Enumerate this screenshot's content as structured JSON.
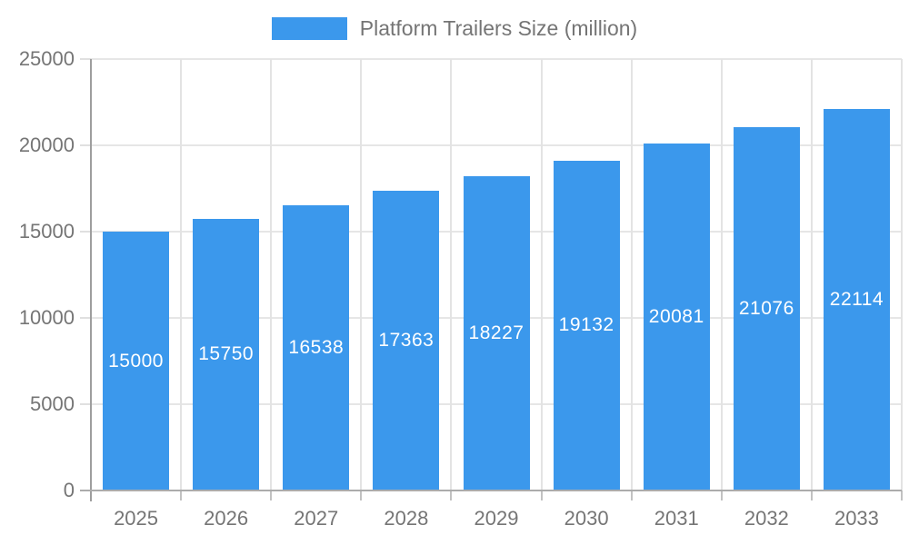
{
  "legend": {
    "label": "Platform Trailers Size (million)"
  },
  "colors": {
    "bar": "#3b98ec",
    "bar_label_text": "#ffffff",
    "axis_text": "#757575",
    "gridline": "#e6e6e6",
    "axis_line": "#9e9e9e"
  },
  "chart_data": {
    "type": "bar",
    "title": "Platform Trailers Size (million)",
    "series": [
      {
        "name": "Platform Trailers Size (million)",
        "values": [
          15000,
          15750,
          16538,
          17363,
          18227,
          19132,
          20081,
          21076,
          22114
        ]
      }
    ],
    "categories": [
      "2025",
      "2026",
      "2027",
      "2028",
      "2029",
      "2030",
      "2031",
      "2032",
      "2033"
    ],
    "data_labels": [
      "15000",
      "15750",
      "16538",
      "17363",
      "18227",
      "19132",
      "20081",
      "21076",
      "22114"
    ],
    "xlabel": "",
    "ylabel": "",
    "ylim": [
      0,
      25000
    ],
    "y_ticks": [
      0,
      5000,
      10000,
      15000,
      20000,
      25000
    ],
    "grid": true,
    "legend_position": "top-center",
    "data_label_position": "inside-center"
  }
}
